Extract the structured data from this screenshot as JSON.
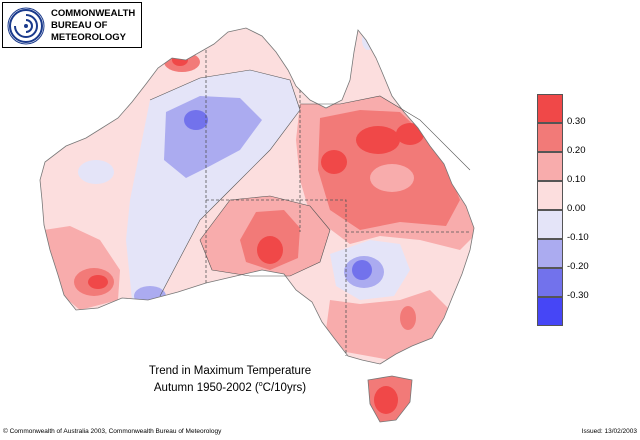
{
  "logo": {
    "line1": "COMMONWEALTH",
    "line2": "BUREAU OF",
    "line3": "METEOROLOGY"
  },
  "title": {
    "line1": "Trend in Maximum Temperature",
    "line2_prefix": "Autumn  1950-2002 (",
    "line2_sup": "o",
    "line2_suffix": "C/10yrs)"
  },
  "legend": {
    "entries": [
      {
        "label": "0.30",
        "color": "#f04848"
      },
      {
        "label": "0.20",
        "color": "#f27a78"
      },
      {
        "label": "0.10",
        "color": "#f8acac"
      },
      {
        "label": "0.00",
        "color": "#fcdede"
      },
      {
        "label": "-0.10",
        "color": "#e4e4f8"
      },
      {
        "label": "-0.20",
        "color": "#ababf0"
      },
      {
        "label": "-0.30",
        "color": "#7272ec"
      }
    ],
    "bottom_color": "#4646f6"
  },
  "footer": {
    "copyright": "© Commonwealth of Australia 2003, Commonwealth Bureau of Meteorology",
    "issued": "Issued: 13/02/2003"
  }
}
